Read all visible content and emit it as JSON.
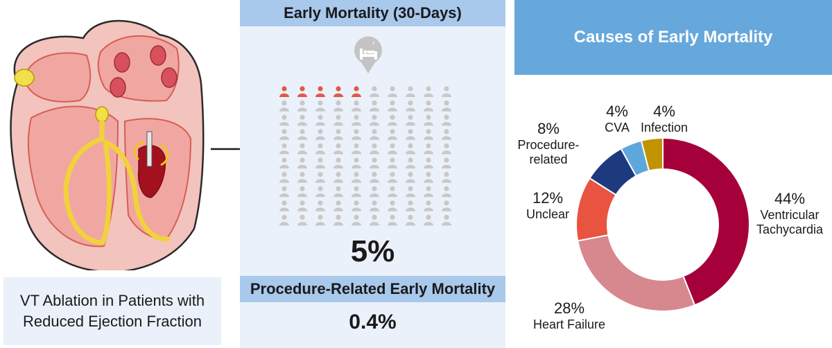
{
  "left": {
    "label_line1": "VT Ablation in Patients with",
    "label_line2": "Reduced Ejection Fraction"
  },
  "middle": {
    "title": "Early Mortality (30-Days)",
    "icon": "hospital-bed-icon",
    "grid_total": 100,
    "grid_highlighted": 5,
    "highlight_color": "#e05a45",
    "neutral_color": "#c8c8c8",
    "big_value": "5%",
    "subtitle": "Procedure-Related Early Mortality",
    "small_value": "0.4%"
  },
  "right": {
    "title": "Causes of Early Mortality"
  },
  "chart_data": {
    "type": "pie",
    "title": "Causes of Early Mortality",
    "donut": true,
    "slices": [
      {
        "label": "Ventricular Tachycardia",
        "pct_text": "44%",
        "value": 44,
        "color": "#a6003a",
        "label_lines": [
          "Ventricular",
          "Tachycardia"
        ]
      },
      {
        "label": "Heart Failure",
        "pct_text": "28%",
        "value": 28,
        "color": "#d7888e",
        "label_lines": [
          "Heart Failure"
        ]
      },
      {
        "label": "Unclear",
        "pct_text": "12%",
        "value": 12,
        "color": "#e8543f",
        "label_lines": [
          "Unclear"
        ]
      },
      {
        "label": "Procedure-related",
        "pct_text": "8%",
        "value": 8,
        "color": "#1d3a7e",
        "label_lines": [
          "Procedure-",
          "related"
        ]
      },
      {
        "label": "CVA",
        "pct_text": "4%",
        "value": 4,
        "color": "#5fa6dd",
        "label_lines": [
          "CVA"
        ]
      },
      {
        "label": "Infection",
        "pct_text": "4%",
        "value": 4,
        "color": "#c19300",
        "label_lines": [
          "Infection"
        ]
      }
    ]
  }
}
